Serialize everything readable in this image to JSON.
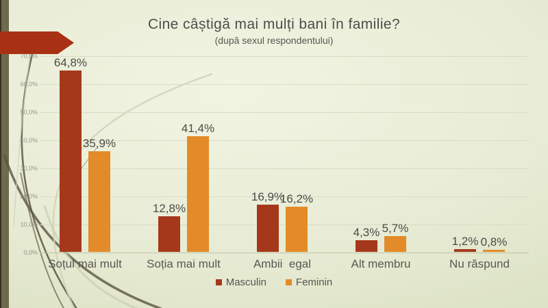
{
  "slide": {
    "title": "Cine câștigă mai mulți bani în familie?",
    "subtitle": "(după sexul respondentului)"
  },
  "chart_data": {
    "type": "bar",
    "title": "Cine câștigă mai mulți bani în familie?",
    "subtitle": "(după sexul respondentului)",
    "categories": [
      "Soțul mai mult",
      "Soția mai mult",
      "Ambii  egal",
      "Alt membru",
      "Nu răspund"
    ],
    "series": [
      {
        "name": "Masculin",
        "color": "#A5381B",
        "values": [
          64.8,
          12.8,
          16.9,
          4.3,
          1.2
        ],
        "data_labels": [
          "64,8%",
          "12,8%",
          "16,9%",
          "4,3%",
          "1,2%"
        ]
      },
      {
        "name": "Feminin",
        "color": "#E28B28",
        "values": [
          35.9,
          41.4,
          16.2,
          5.7,
          0.8
        ],
        "data_labels": [
          "35,9%",
          "41,4%",
          "16,2%",
          "5,7%",
          "0,8%"
        ]
      }
    ],
    "ylim": [
      0,
      70
    ],
    "ytick_labels": [
      "0,0%",
      "10,0%",
      "20,0%",
      "30,0%",
      "40,0%",
      "50,0%",
      "60,0%",
      "70,0%"
    ],
    "grid": true,
    "legend_position": "bottom"
  },
  "colors": {
    "accent_arrow": "#A93113",
    "masculin": "#A5381B",
    "feminin": "#E28B28",
    "band": "#6F694D",
    "background": "#E9EDD7"
  }
}
